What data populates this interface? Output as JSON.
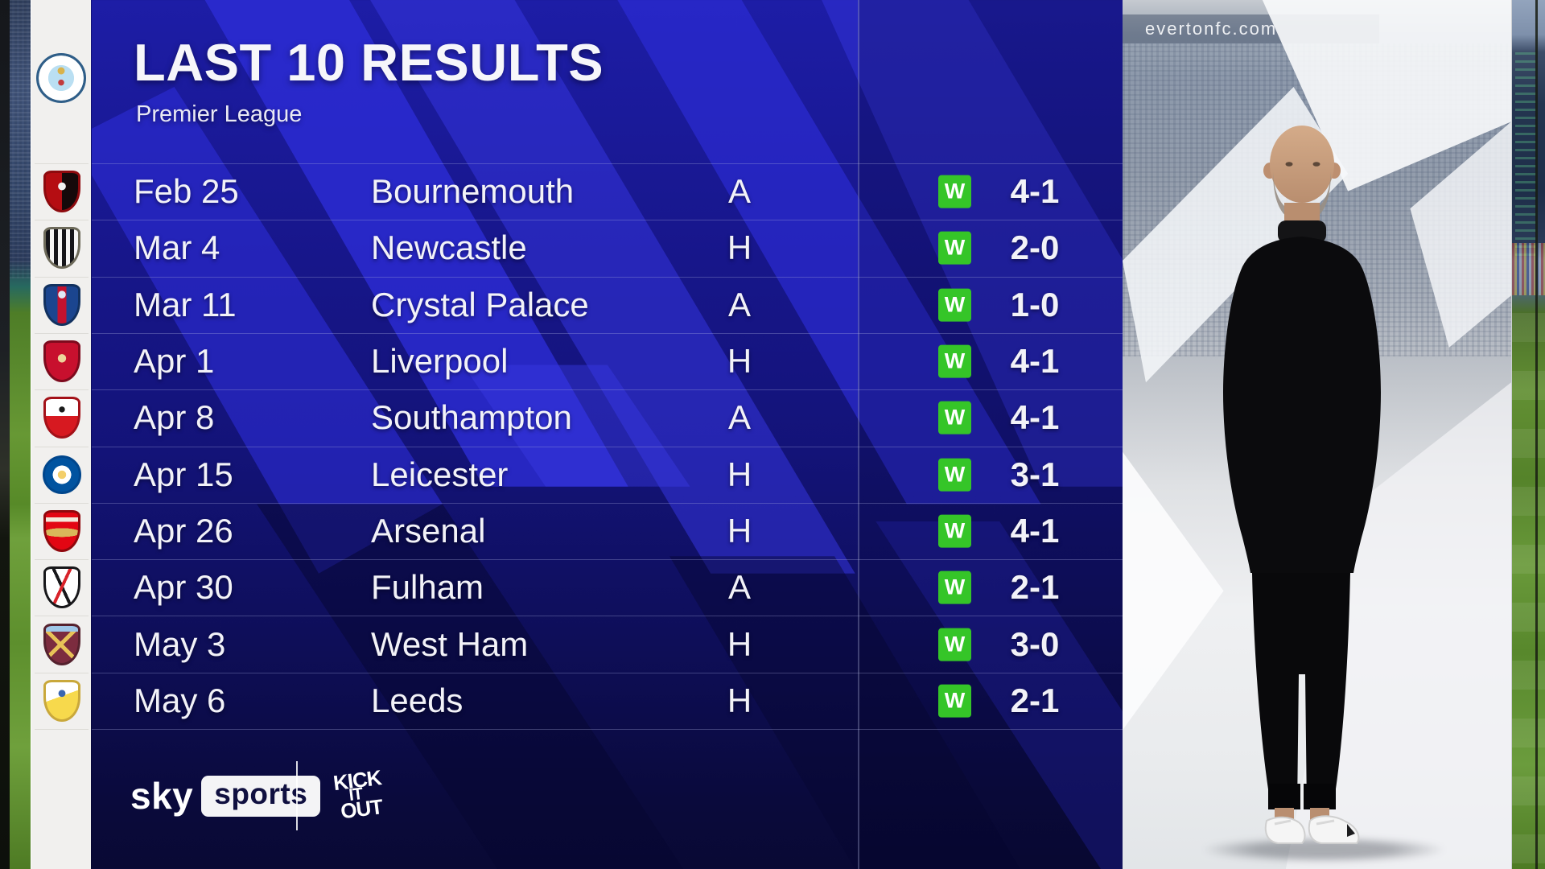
{
  "header": {
    "title": "LAST 10 RESULTS",
    "subtitle": "Premier League",
    "team": "Manchester City",
    "crest": {
      "shape": "circle",
      "border": "#2f5e88",
      "bg": "radial-gradient(circle at 50% 34%, #d9b24a 0 9%, transparent 10%), radial-gradient(circle at 50% 60%, #c23b3b 0 8%, transparent 9%), radial-gradient(circle, #badff2 0 40%, #ffffff 41% 70%, #2f5e88 71% 77%, #ffffff 78% 100%)"
    }
  },
  "results": [
    {
      "date": "Feb 25",
      "opponent": "Bournemouth",
      "venue": "A",
      "outcome": "W",
      "score": "4-1",
      "crest": {
        "shape": "shield",
        "border": "#8d0a0e",
        "bg": "radial-gradient(circle at 50% 36%, #f2f2f2 0 13%, transparent 14%), linear-gradient(90deg, #b50d12 0 50%, #15090a 50% 100%)"
      }
    },
    {
      "date": "Mar 4",
      "opponent": "Newcastle",
      "venue": "H",
      "outcome": "W",
      "score": "2-0",
      "crest": {
        "shape": "shield",
        "border": "#6d6a5a",
        "bg": "repeating-linear-gradient(90deg, #15151a 0 5px, #f5f5f5 5px 10px)"
      }
    },
    {
      "date": "Mar 11",
      "opponent": "Crystal Palace",
      "venue": "A",
      "outcome": "W",
      "score": "1-0",
      "crest": {
        "shape": "shield",
        "border": "#12315f",
        "bg": "radial-gradient(circle at 50% 22%, #dfe9f7 0 11%, transparent 12%), linear-gradient(90deg, #1b458f 0 36%, #c4122e 36% 64%, #1b458f 64% 100%)"
      }
    },
    {
      "date": "Apr 1",
      "opponent": "Liverpool",
      "venue": "H",
      "outcome": "W",
      "score": "4-1",
      "crest": {
        "shape": "shield",
        "border": "#7d0a1d",
        "bg": "radial-gradient(circle at 50% 42%, #edd49b 0 15%, transparent 16%), linear-gradient(180deg, #c8102e 0 100%)"
      }
    },
    {
      "date": "Apr 8",
      "opponent": "Southampton",
      "venue": "A",
      "outcome": "W",
      "score": "4-1",
      "crest": {
        "shape": "shield",
        "border": "#a31118",
        "bg": "radial-gradient(circle at 50% 28%, #1a1a1a 0 9%, transparent 10%), linear-gradient(180deg, #ffffff 0 46%, #d71920 46% 100%)"
      }
    },
    {
      "date": "Apr 15",
      "opponent": "Leicester",
      "venue": "H",
      "outcome": "W",
      "score": "3-1",
      "crest": {
        "shape": "circle",
        "border": "#00468c",
        "bg": "radial-gradient(circle, #f3cf6b 0 17%, #ffffff 18% 38%, #0053a0 39% 76%, #ffffff 77% 100%)"
      }
    },
    {
      "date": "Apr 26",
      "opponent": "Arsenal",
      "venue": "H",
      "outcome": "W",
      "score": "4-1",
      "crest": {
        "shape": "shield",
        "border": "#90080d",
        "bg": "linear-gradient(180deg, transparent 0 13%, #f3e8da 13% 25%, transparent 25%), radial-gradient(ellipse 58% 12% at 50% 54%, #d9b75a 0 98%, transparent 100%), linear-gradient(180deg, #e30613 0 100%)"
      }
    },
    {
      "date": "Apr 30",
      "opponent": "Fulham",
      "venue": "A",
      "outcome": "W",
      "score": "2-1",
      "crest": {
        "shape": "shield",
        "border": "#17171a",
        "bg": "linear-gradient(115deg, transparent 0 46%, #d8232a 46% 53%, transparent 53%), linear-gradient(65deg, transparent 0 47%, #17171a 47% 54%, transparent 54%), linear-gradient(180deg, #ffffff 0 100%)"
      }
    },
    {
      "date": "May 3",
      "opponent": "West Ham",
      "venue": "H",
      "outcome": "W",
      "score": "3-0",
      "crest": {
        "shape": "shield",
        "border": "#55222e",
        "bg": "linear-gradient(180deg, #9fc7e8 0 15%, transparent 15%), linear-gradient(45deg, transparent 0 44%, #e8c257 44% 52%, transparent 52%), linear-gradient(135deg, transparent 0 44%, #e8c257 44% 52%, transparent 52%), linear-gradient(180deg, #7c2c3f 0 100%)"
      }
    },
    {
      "date": "May 6",
      "opponent": "Leeds",
      "venue": "H",
      "outcome": "W",
      "score": "2-1",
      "crest": {
        "shape": "shield",
        "border": "#c9a83b",
        "bg": "radial-gradient(circle at 50% 30%, #3a66b0 0 11%, transparent 12%), linear-gradient(160deg, #ffffff 0 40%, #f7d94c 40% 100%)"
      }
    }
  ],
  "footer": {
    "sky": "sky",
    "sports": "sports",
    "campaign": [
      "KICK",
      "IT",
      "OUT"
    ]
  },
  "photo": {
    "stand_ad_text": "evertonfc.com"
  },
  "colors": {
    "panel_navy": "#16167f",
    "chevron_blue": "#2c2cd6",
    "win_green": "#35c528",
    "text_white": "#f2f2f8",
    "sky_box_text": "#101040"
  }
}
